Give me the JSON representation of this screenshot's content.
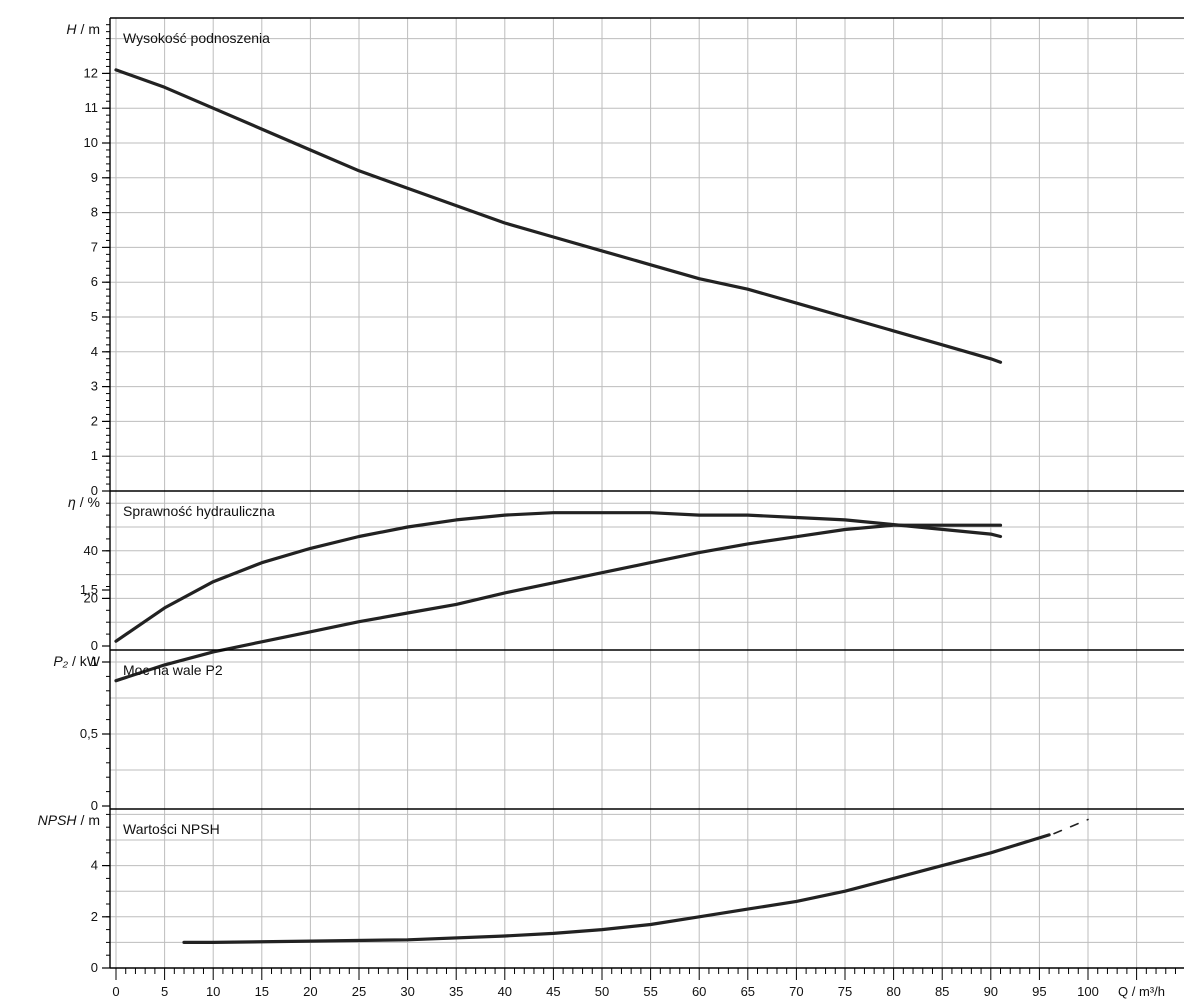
{
  "chart_data": {
    "type": "line",
    "x_axis": {
      "label": "Q / m³/h",
      "ticks": [
        0,
        5,
        10,
        15,
        20,
        25,
        30,
        35,
        40,
        45,
        50,
        55,
        60,
        65,
        70,
        75,
        80,
        85,
        90,
        95,
        100
      ],
      "range": [
        0,
        110
      ]
    },
    "grid": true,
    "colors": {
      "curve": "#222222",
      "grid": "#bdbdbd",
      "frame": "#000000"
    },
    "panels": [
      {
        "id": "head",
        "title": "Wysokość podnoszenia",
        "ylabel": "H / m",
        "ylabel_var": "H",
        "ylabel_unit": "/ m",
        "ylim": [
          0,
          13
        ],
        "y_ticks": [
          "0",
          "1",
          "2",
          "3",
          "4",
          "5",
          "6",
          "7",
          "8",
          "9",
          "10",
          "11",
          "12"
        ],
        "y_tick_values": [
          0,
          1,
          2,
          3,
          4,
          5,
          6,
          7,
          8,
          9,
          10,
          11,
          12
        ],
        "series": [
          {
            "x": [
              0,
              5,
              10,
              15,
              20,
              25,
              30,
              35,
              40,
              45,
              50,
              55,
              60,
              65,
              70,
              75,
              80,
              85,
              90,
              91
            ],
            "y": [
              12.1,
              11.6,
              11.0,
              10.4,
              9.8,
              9.2,
              8.7,
              8.2,
              7.7,
              7.3,
              6.9,
              6.5,
              6.1,
              5.8,
              5.4,
              5.0,
              4.6,
              4.2,
              3.8,
              3.7
            ]
          }
        ]
      },
      {
        "id": "efficiency",
        "title": "Sprawność hydrauliczna",
        "ylabel": "η / %",
        "ylabel_var": "η",
        "ylabel_unit": "/ %",
        "ylim": [
          0,
          60
        ],
        "y_ticks": [
          "0",
          "20",
          "40"
        ],
        "y_tick_values": [
          0,
          20,
          40
        ],
        "series": [
          {
            "x": [
              0,
              5,
              10,
              15,
              20,
              25,
              30,
              35,
              40,
              45,
              50,
              55,
              60,
              65,
              70,
              75,
              80,
              85,
              90,
              91
            ],
            "y": [
              2,
              16,
              27,
              35,
              41,
              46,
              50,
              53,
              55,
              56,
              56,
              56,
              55,
              55,
              54,
              53,
              51,
              49,
              47,
              46
            ]
          }
        ]
      },
      {
        "id": "power",
        "title": "Moc na wale P2",
        "ylabel": "P₂ / kW",
        "ylabel_var": "P₂",
        "ylabel_unit": "/ kW",
        "ylim": [
          0,
          2.1
        ],
        "y_ticks": [
          "0",
          "0,5",
          "1",
          "1,5"
        ],
        "y_tick_values": [
          0,
          0.5,
          1,
          1.5
        ],
        "series": [
          {
            "x": [
              0,
              5,
              10,
              15,
              20,
              25,
              30,
              35,
              40,
              45,
              50,
              55,
              60,
              65,
              70,
              75,
              80,
              85,
              90,
              91
            ],
            "y": [
              0.87,
              0.98,
              1.07,
              1.14,
              1.21,
              1.28,
              1.34,
              1.4,
              1.48,
              1.55,
              1.62,
              1.69,
              1.76,
              1.82,
              1.87,
              1.92,
              1.95,
              1.95,
              1.95,
              1.95
            ]
          }
        ]
      },
      {
        "id": "npsh",
        "title": "Wartości NPSH",
        "ylabel": "NPSH / m",
        "ylabel_var": "NPSH",
        "ylabel_unit": "/ m",
        "ylim": [
          0,
          6
        ],
        "y_ticks": [
          "0",
          "2",
          "4"
        ],
        "y_tick_values": [
          0,
          2,
          4
        ],
        "series": [
          {
            "x": [
              7,
              10,
              20,
              30,
              40,
              45,
              50,
              55,
              60,
              65,
              70,
              75,
              80,
              85,
              90,
              96
            ],
            "y": [
              1.0,
              1.0,
              1.05,
              1.1,
              1.25,
              1.35,
              1.5,
              1.7,
              2.0,
              2.3,
              2.6,
              3.0,
              3.5,
              4.0,
              4.5,
              5.2
            ]
          },
          {
            "x": [
              96.5,
              100
            ],
            "y": [
              5.25,
              5.8
            ],
            "style": "dashed"
          }
        ]
      }
    ]
  }
}
